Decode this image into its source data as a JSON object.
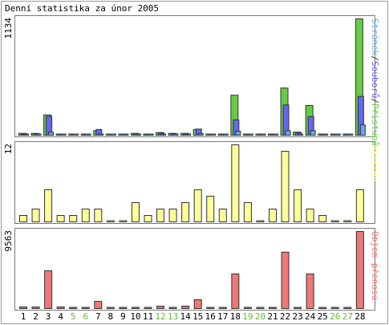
{
  "chart_data": [
    {
      "type": "bar",
      "title": "Denní statistika za únor 2005",
      "categories": [
        "1",
        "2",
        "3",
        "4",
        "5",
        "6",
        "7",
        "8",
        "9",
        "10",
        "11",
        "12",
        "13",
        "14",
        "15",
        "16",
        "17",
        "18",
        "19",
        "20",
        "21",
        "22",
        "23",
        "24",
        "25",
        "26",
        "27",
        "28"
      ],
      "weekend_days": [
        "5",
        "6",
        "12",
        "13",
        "19",
        "20",
        "26",
        "27"
      ],
      "ymax_label": "1134",
      "ylim": [
        0,
        1134
      ],
      "legend_position": "right-vertical",
      "series": [
        {
          "name": "Přístupů",
          "color": "#66cc44",
          "values": [
            18,
            18,
            198,
            6,
            6,
            6,
            44,
            6,
            0,
            18,
            6,
            26,
            18,
            18,
            56,
            6,
            6,
            390,
            6,
            6,
            6,
            460,
            30,
            290,
            6,
            0,
            0,
            1134
          ]
        },
        {
          "name": "Souborů",
          "color": "#6666ee",
          "values": [
            14,
            14,
            185,
            5,
            5,
            5,
            56,
            5,
            0,
            14,
            5,
            22,
            14,
            14,
            60,
            5,
            5,
            150,
            5,
            5,
            5,
            295,
            25,
            182,
            5,
            0,
            0,
            378
          ]
        },
        {
          "name": "Stránek",
          "color": "#66aaee",
          "values": [
            5,
            5,
            30,
            2,
            2,
            2,
            12,
            2,
            0,
            5,
            2,
            8,
            5,
            5,
            16,
            2,
            2,
            40,
            2,
            2,
            2,
            44,
            8,
            44,
            2,
            0,
            0,
            100
          ]
        }
      ]
    },
    {
      "type": "bar",
      "ymax_label": "12",
      "ylim": [
        0,
        12
      ],
      "series": [
        {
          "name": "Návštěv",
          "color": "#ffff99",
          "values": [
            1,
            2,
            5,
            1,
            1,
            2,
            2,
            0,
            0,
            3,
            1,
            2,
            2,
            3,
            5,
            4,
            2,
            12,
            3,
            0,
            2,
            11,
            5,
            2,
            1,
            0,
            0,
            5
          ]
        }
      ]
    },
    {
      "type": "bar",
      "ymax_label": "9563",
      "ylim": [
        0,
        9563
      ],
      "series": [
        {
          "name": "Objem přenosu",
          "color": "#ee7777",
          "values": [
            200,
            200,
            4700,
            200,
            0,
            0,
            900,
            0,
            0,
            0,
            0,
            300,
            0,
            300,
            1100,
            0,
            0,
            4300,
            0,
            0,
            0,
            7000,
            0,
            4300,
            0,
            0,
            0,
            9563
          ]
        }
      ]
    }
  ]
}
